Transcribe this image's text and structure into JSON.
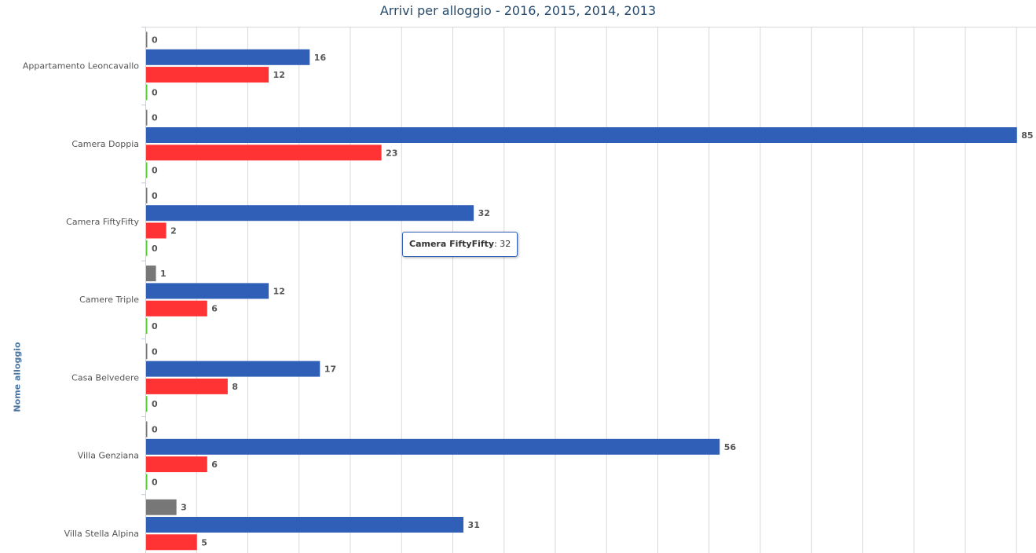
{
  "chart_data": {
    "type": "bar",
    "orientation": "horizontal",
    "title": "Arrivi per alloggio - 2016, 2015, 2014, 2013",
    "ylabel": "Nome alloggio",
    "xlabel": "",
    "categories": [
      "Appartamento Leoncavallo",
      "Camera Doppia",
      "Camera FiftyFifty",
      "Camere Triple",
      "Casa Belvedere",
      "Villa Genziana",
      "Villa Stella Alpina"
    ],
    "series": [
      {
        "color": "#777777",
        "values": [
          0,
          0,
          0,
          1,
          0,
          0,
          3
        ]
      },
      {
        "color": "#2f5fb7",
        "values": [
          16,
          85,
          32,
          12,
          17,
          56,
          31
        ]
      },
      {
        "color": "#ff3333",
        "values": [
          12,
          23,
          2,
          6,
          8,
          6,
          5
        ]
      },
      {
        "color": "#55cc33",
        "values": [
          0,
          0,
          0,
          0,
          0,
          0,
          null
        ]
      }
    ],
    "xlim": [
      0,
      87
    ],
    "grid": true
  },
  "tooltip": {
    "category": "Camera FiftyFifty",
    "value": "32"
  }
}
